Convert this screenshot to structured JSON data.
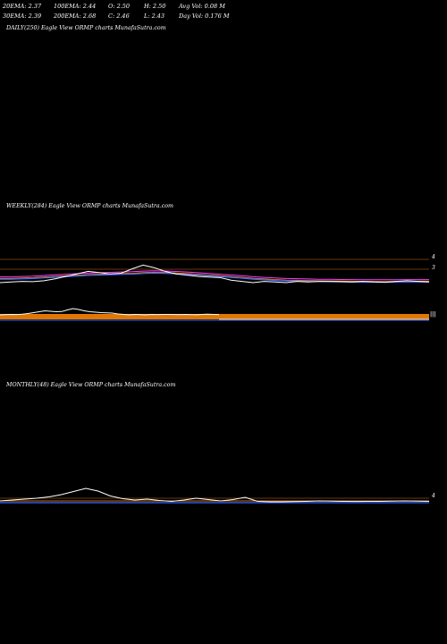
{
  "stats": {
    "row1": [
      "20EMA: 2.37",
      "100EMA: 2.44",
      "O: 2.50",
      "H: 2.50",
      "Avg Vol: 0.08  M"
    ],
    "row2": [
      "30EMA: 2.39",
      "200EMA: 2.68",
      "C: 2.46",
      "L: 2.43",
      "Day Vol: 0.176  M"
    ]
  },
  "panels": {
    "daily_title": "DAILY(250) Eagle   View  ORMP charts MunafaSutra.com",
    "weekly_title": "WEEKLY(284) Eagle   View  ORMP charts MunafaSutra.com",
    "monthly_title": "MONTHLY(48) Eagle   View  ORMP charts MunafaSutra.com"
  },
  "colors": {
    "price": "#ffffff",
    "ema_blue": "#3b6bff",
    "ema_magenta": "#ff3cff",
    "ema_orange": "#ff8c1a",
    "volume_band": "#e07800",
    "level_line": "#8a4a10"
  },
  "chart_data": [
    {
      "type": "line",
      "title": "WEEKLY(284) Eagle   View  ORMP charts MunafaSutra.com",
      "price_levels": [
        "4",
        "3"
      ],
      "series": [
        {
          "values": [
            2.2,
            2.25,
            2.3,
            2.28,
            2.35,
            2.5,
            2.7,
            2.9,
            3.1,
            3.0,
            2.9,
            2.95,
            3.3,
            3.6,
            3.4,
            3.1,
            2.9,
            2.8,
            2.7,
            2.65,
            2.6,
            2.4,
            2.3,
            2.2,
            2.3,
            2.25,
            2.2,
            2.3,
            2.25,
            2.3,
            2.3,
            2.28,
            2.25,
            2.3,
            2.25,
            2.22,
            2.3,
            2.35,
            2.3,
            2.25
          ]
        },
        {
          "values": [
            2.6,
            2.6,
            2.62,
            2.65,
            2.7,
            2.75,
            2.8,
            2.85,
            2.9,
            2.92,
            2.95,
            2.98,
            3.0,
            3.05,
            3.08,
            3.06,
            3.02,
            2.98,
            2.92,
            2.86,
            2.8,
            2.74,
            2.68,
            2.6,
            2.55,
            2.5,
            2.46,
            2.44,
            2.42,
            2.4,
            2.39,
            2.38,
            2.37,
            2.36,
            2.36,
            2.36,
            2.36,
            2.37,
            2.37,
            2.37
          ]
        }
      ]
    },
    {
      "type": "line",
      "title": "MONTHLY(48) Eagle   View  ORMP charts MunafaSutra.com",
      "price_levels": [
        "4"
      ],
      "series": [
        {
          "values": [
            2.4,
            2.6,
            2.8,
            3.0,
            3.3,
            3.8,
            4.5,
            5.2,
            4.6,
            3.5,
            2.9,
            2.6,
            2.8,
            2.5,
            2.3,
            2.6,
            3.0,
            2.7,
            2.4,
            2.7,
            3.2,
            2.3,
            2.2,
            2.2,
            2.25,
            2.3,
            2.4,
            2.35,
            2.3,
            2.28,
            2.3,
            2.3,
            2.35,
            2.4,
            2.35,
            2.3
          ]
        }
      ]
    }
  ]
}
